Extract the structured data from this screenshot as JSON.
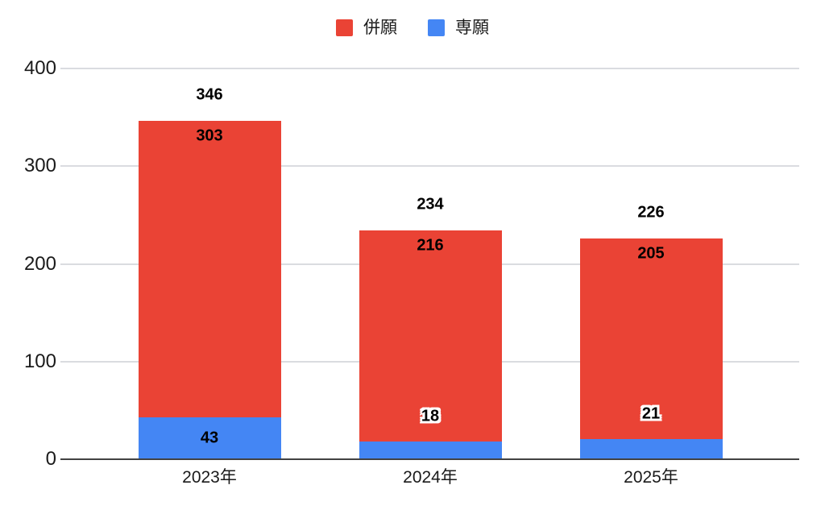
{
  "chart_data": {
    "type": "bar",
    "stacked": true,
    "title": "",
    "xlabel": "",
    "ylabel": "",
    "categories": [
      "2023年",
      "2024年",
      "2025年"
    ],
    "series": [
      {
        "name": "併願",
        "color": "#EA4335",
        "values": [
          303,
          216,
          205
        ]
      },
      {
        "name": "専願",
        "color": "#4486F4",
        "values": [
          43,
          18,
          21
        ]
      }
    ],
    "stack_bottom_series_index": 1,
    "totals": [
      346,
      234,
      226
    ],
    "yticks": [
      0,
      100,
      200,
      300,
      400
    ],
    "ylim": [
      0,
      400
    ],
    "grid": true,
    "legend_position": "top",
    "colors": {
      "background": "#FFFFFF",
      "gridline": "#DADCE0",
      "axis_baseline": "#424242",
      "label_text": "#000000",
      "tick_text": "#1A1A1A"
    }
  }
}
